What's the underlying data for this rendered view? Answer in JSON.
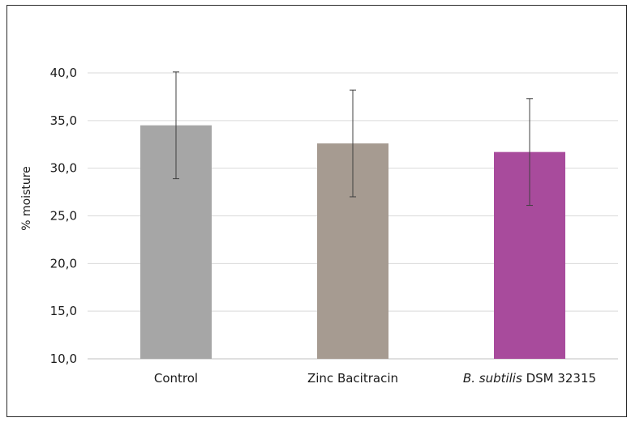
{
  "chart_data": {
    "type": "bar",
    "categories": [
      {
        "label": "Control",
        "italic": "",
        "rest": ""
      },
      {
        "label": "Zinc Bacitracin",
        "italic": "",
        "rest": ""
      },
      {
        "label": "",
        "italic": "B. subtilis",
        "rest": " DSM 32315"
      }
    ],
    "values": [
      34.5,
      32.6,
      31.7
    ],
    "errors": [
      5.6,
      5.6,
      5.6
    ],
    "bar_colors": [
      "#a6a6a6",
      "#a69b91",
      "#a84b9c"
    ],
    "ylabel": "% moisture",
    "xlabel": "",
    "title": "",
    "ylim": [
      10,
      40
    ],
    "yticks": [
      "10,0",
      "15,0",
      "20,0",
      "25,0",
      "30,0",
      "35,0",
      "40,0"
    ],
    "ytick_values": [
      10,
      15,
      20,
      25,
      30,
      35,
      40
    ],
    "grid": true,
    "legend": "none"
  }
}
